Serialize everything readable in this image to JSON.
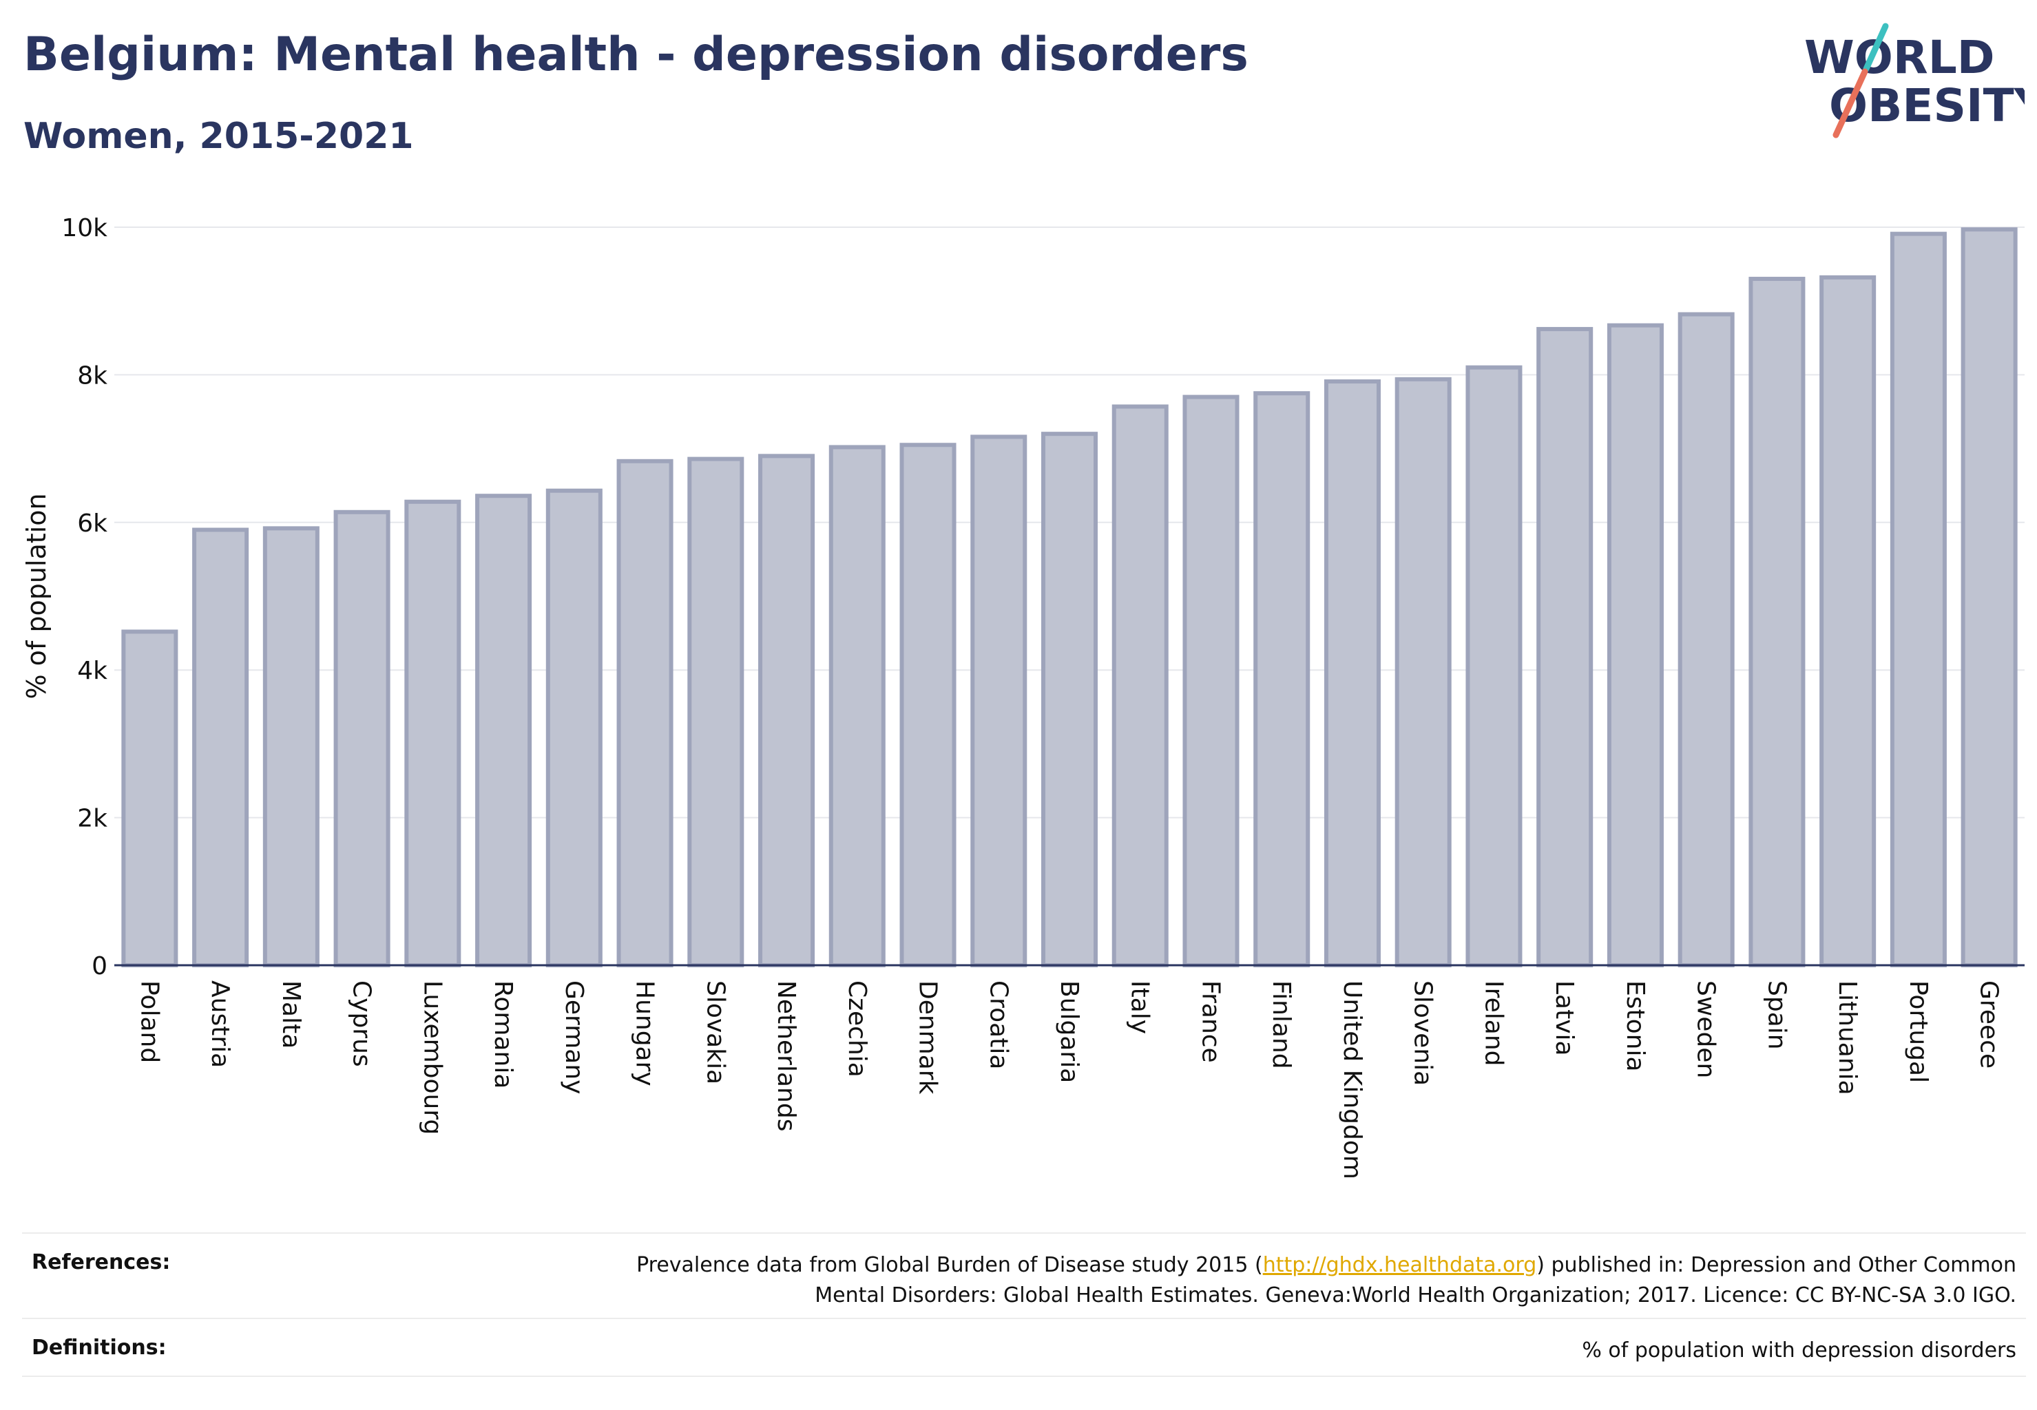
{
  "header": {
    "title": "Belgium: Mental health - depression disorders",
    "subtitle": "Women, 2015-2021"
  },
  "logo": {
    "line1": "WORLD",
    "line2": "OBESITY",
    "brand_color": "#2a3560",
    "accent_teal": "#3cc0c0",
    "accent_coral": "#e8705a"
  },
  "chart_data": {
    "type": "bar",
    "title": "",
    "xlabel": "",
    "ylabel": "% of population",
    "ylim": [
      0,
      10000
    ],
    "yticks": [
      {
        "value": 0,
        "label": "0"
      },
      {
        "value": 2000,
        "label": "2k"
      },
      {
        "value": 4000,
        "label": "4k"
      },
      {
        "value": 6000,
        "label": "6k"
      },
      {
        "value": 8000,
        "label": "8k"
      },
      {
        "value": 10000,
        "label": "10k"
      }
    ],
    "grid": true,
    "legend": "none",
    "bar_fill": "#bfc3d1",
    "bar_stroke": "#9ea4bb",
    "categories": [
      "Poland",
      "Austria",
      "Malta",
      "Cyprus",
      "Luxembourg",
      "Romania",
      "Germany",
      "Hungary",
      "Slovakia",
      "Netherlands",
      "Czechia",
      "Denmark",
      "Croatia",
      "Bulgaria",
      "Italy",
      "France",
      "Finland",
      "United Kingdom",
      "Slovenia",
      "Ireland",
      "Latvia",
      "Estonia",
      "Sweden",
      "Spain",
      "Lithuania",
      "Portugal",
      "Greece"
    ],
    "values": [
      4520,
      5900,
      5920,
      6140,
      6280,
      6360,
      6430,
      6830,
      6860,
      6900,
      7020,
      7050,
      7160,
      7200,
      7570,
      7700,
      7750,
      7910,
      7940,
      8100,
      8620,
      8670,
      8820,
      9300,
      9320,
      9910,
      9970
    ]
  },
  "footer": {
    "references_label": "References:",
    "references_before_link": "Prevalence data from Global Burden of Disease study 2015 (",
    "references_link": "http://ghdx.healthdata.org",
    "references_after_link": ") published in: Depression and Other Common",
    "references_line2": "Mental Disorders: Global Health Estimates. Geneva:World Health Organization; 2017. Licence: CC BY-NC-SA 3.0 IGO.",
    "definitions_label": "Definitions:",
    "definitions_text": "% of population with depression disorders"
  }
}
